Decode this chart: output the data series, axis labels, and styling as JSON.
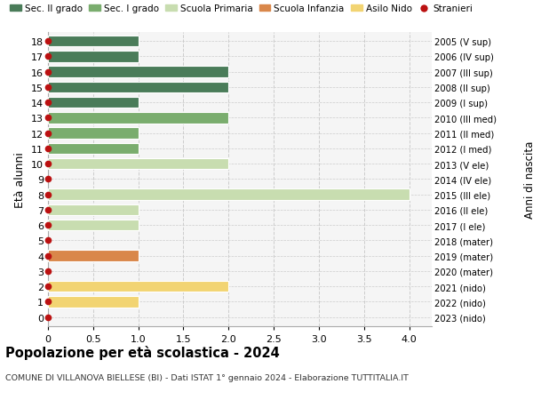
{
  "ages": [
    18,
    17,
    16,
    15,
    14,
    13,
    12,
    11,
    10,
    9,
    8,
    7,
    6,
    5,
    4,
    3,
    2,
    1,
    0
  ],
  "labels_left": [
    "18",
    "17",
    "16",
    "15",
    "14",
    "13",
    "12",
    "11",
    "10",
    "9",
    "8",
    "7",
    "6",
    "5",
    "4",
    "3",
    "2",
    "1",
    "0"
  ],
  "labels_right": [
    "2005 (V sup)",
    "2006 (IV sup)",
    "2007 (III sup)",
    "2008 (II sup)",
    "2009 (I sup)",
    "2010 (III med)",
    "2011 (II med)",
    "2012 (I med)",
    "2013 (V ele)",
    "2014 (IV ele)",
    "2015 (III ele)",
    "2016 (II ele)",
    "2017 (I ele)",
    "2018 (mater)",
    "2019 (mater)",
    "2020 (mater)",
    "2021 (nido)",
    "2022 (nido)",
    "2023 (nido)"
  ],
  "bar_values": [
    1,
    1,
    2,
    2,
    1,
    2,
    1,
    1,
    2,
    0,
    4,
    1,
    1,
    0,
    1,
    0,
    2,
    1,
    0
  ],
  "bar_colors": [
    "#4a7c59",
    "#4a7c59",
    "#4a7c59",
    "#4a7c59",
    "#4a7c59",
    "#7aad6e",
    "#7aad6e",
    "#7aad6e",
    "#c8ddb0",
    "#c8ddb0",
    "#c8ddb0",
    "#c8ddb0",
    "#c8ddb0",
    "#d9874a",
    "#d9874a",
    "#d9874a",
    "#f2d472",
    "#f2d472",
    "#f2d472"
  ],
  "stranieri_dot_color": "#bb1111",
  "background_color": "#f5f5f5",
  "grid_color": "#cccccc",
  "xlim": [
    0,
    4.25
  ],
  "xticks": [
    0,
    0.5,
    1.0,
    1.5,
    2.0,
    2.5,
    3.0,
    3.5,
    4.0
  ],
  "xtick_labels": [
    "0",
    "0.5",
    "1.0",
    "1.5",
    "2.0",
    "2.5",
    "3.0",
    "3.5",
    "4.0"
  ],
  "ylabel": "Età alunni",
  "right_label": "Anni di nascita",
  "title": "Popolazione per età scolastica - 2024",
  "subtitle": "COMUNE DI VILLANOVA BIELLESE (BI) - Dati ISTAT 1° gennaio 2024 - Elaborazione TUTTITALIA.IT",
  "legend_items": [
    {
      "label": "Sec. II grado",
      "color": "#4a7c59",
      "type": "patch"
    },
    {
      "label": "Sec. I grado",
      "color": "#7aad6e",
      "type": "patch"
    },
    {
      "label": "Scuola Primaria",
      "color": "#c8ddb0",
      "type": "patch"
    },
    {
      "label": "Scuola Infanzia",
      "color": "#d9874a",
      "type": "patch"
    },
    {
      "label": "Asilo Nido",
      "color": "#f2d472",
      "type": "patch"
    },
    {
      "label": "Stranieri",
      "color": "#bb1111",
      "type": "dot"
    }
  ],
  "bar_height": 0.72,
  "figsize": [
    6.0,
    4.6
  ],
  "dpi": 100
}
